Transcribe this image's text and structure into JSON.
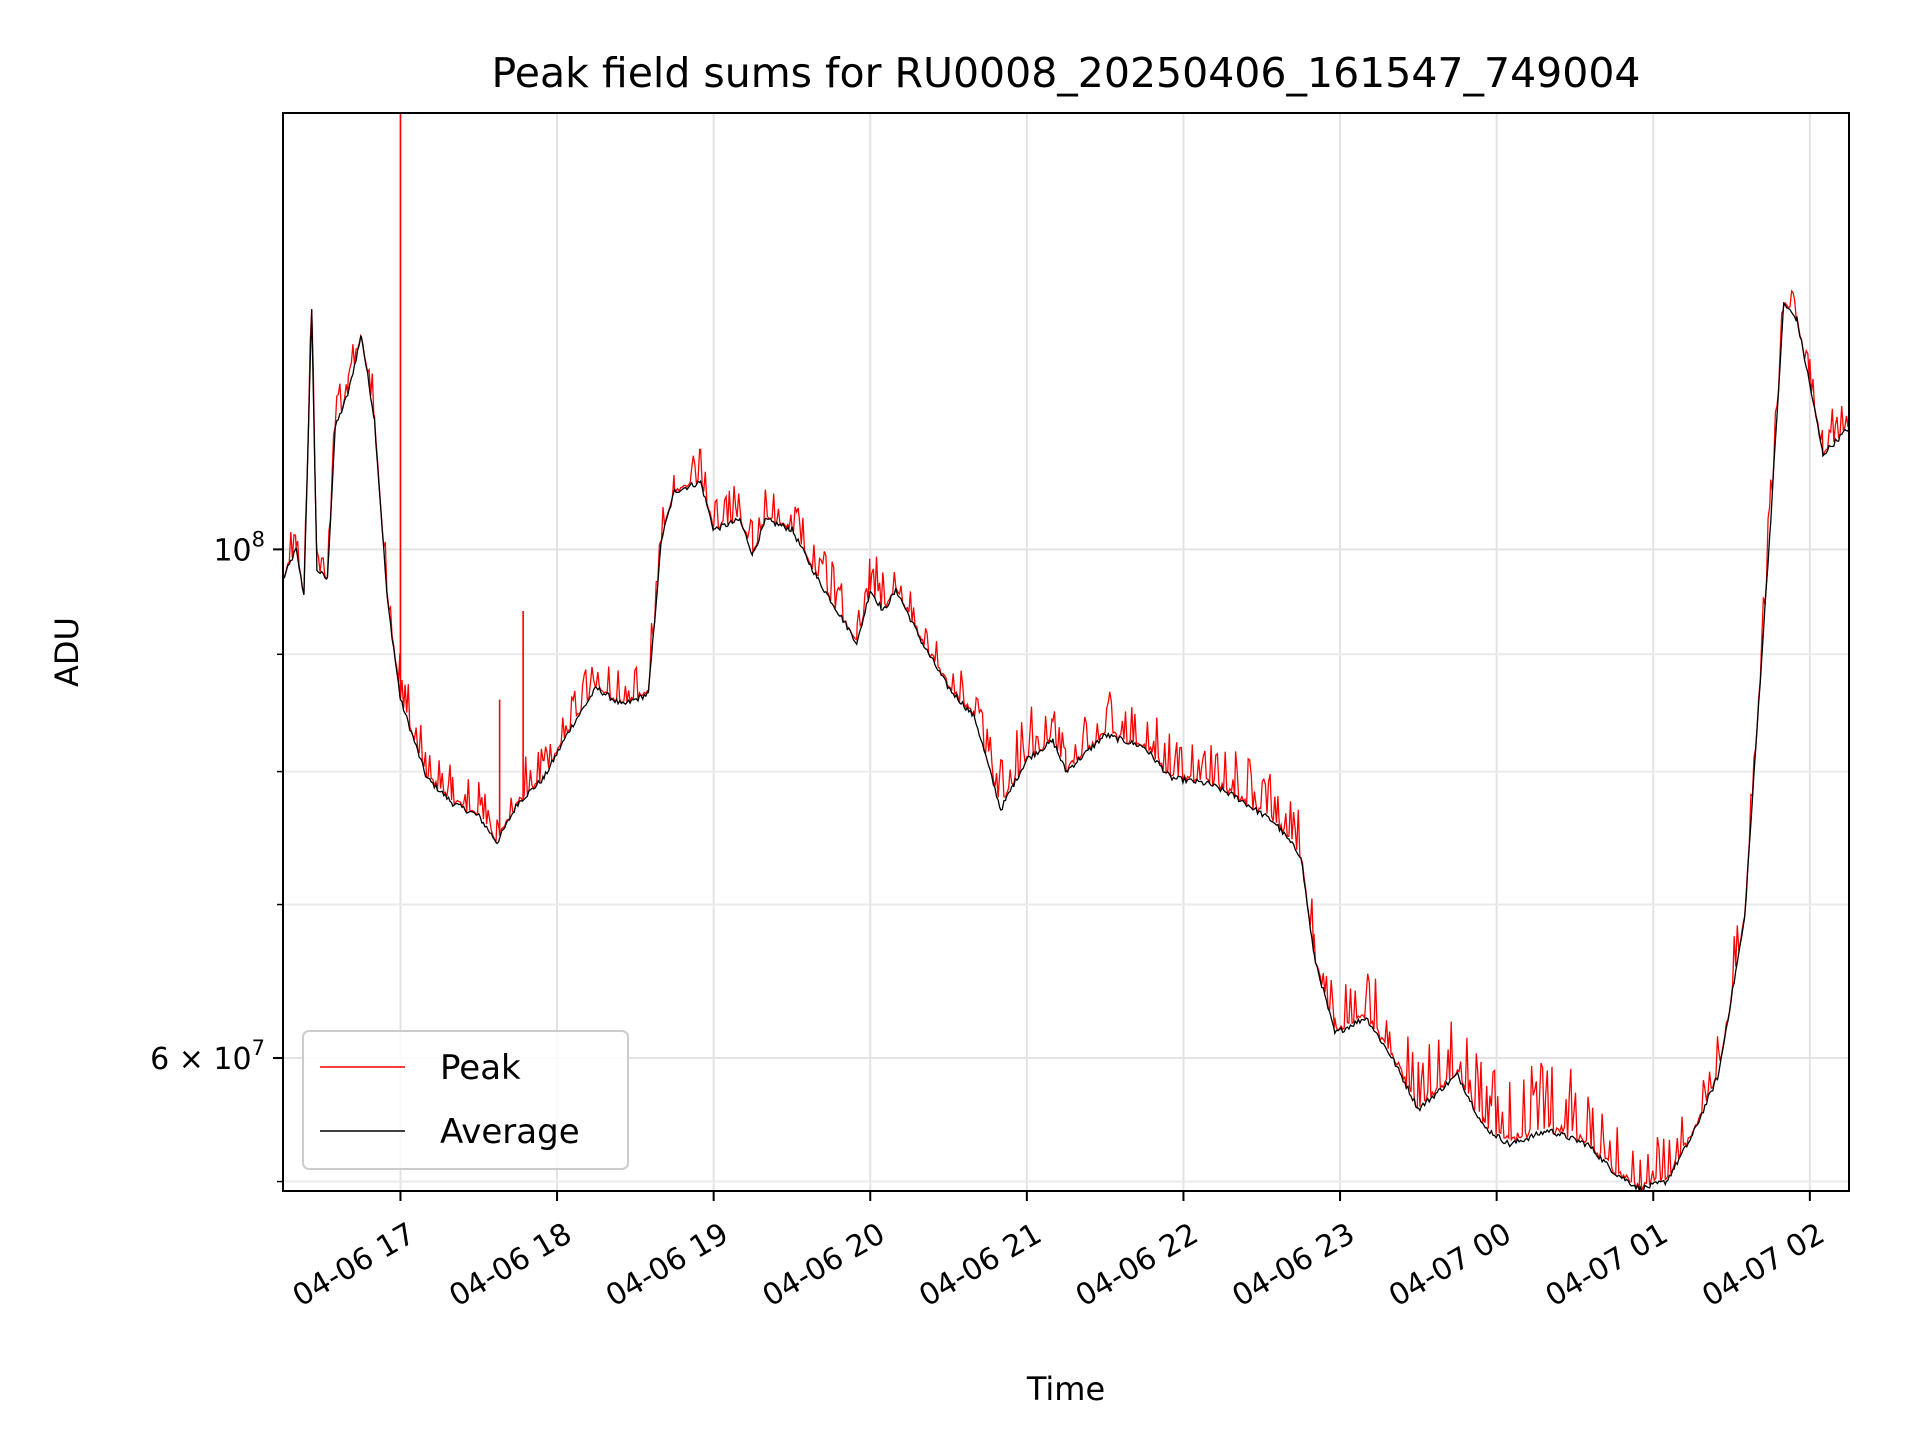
{
  "chart_data": {
    "type": "line",
    "title": "Peak field sums for RU0008_20250406_161547_749004",
    "xlabel": "Time",
    "ylabel": "ADU",
    "y_scale": "log",
    "ylim": [
      52500000,
      155000000
    ],
    "xlim": [
      "2025-04-06 16:15",
      "2025-04-07 02:15"
    ],
    "x_ticks": [
      "04-06 17",
      "04-06 18",
      "04-06 19",
      "04-06 20",
      "04-06 21",
      "04-06 22",
      "04-06 23",
      "04-07 00",
      "04-07 01",
      "04-07 02"
    ],
    "x_tick_times": [
      "2025-04-06 17:00",
      "2025-04-06 18:00",
      "2025-04-06 19:00",
      "2025-04-06 20:00",
      "2025-04-06 21:00",
      "2025-04-06 22:00",
      "2025-04-06 23:00",
      "2025-04-07 00:00",
      "2025-04-07 01:00",
      "2025-04-07 02:00"
    ],
    "y_major_ticks": [
      {
        "value": 100000000,
        "label_base": "10",
        "label_exp": "8"
      },
      {
        "value": 60000000,
        "label_base": "6 × 10",
        "label_exp": "7"
      }
    ],
    "y_minor_gridlines": [
      53000000,
      70000000,
      80000000,
      90000000
    ],
    "grid": true,
    "legend_position": "lower-left",
    "series": [
      {
        "name": "Peak",
        "color": "#ff0000",
        "spikes": [
          {
            "time": "2025-04-06 17:00",
            "value": 155000000
          },
          {
            "time": "2025-04-06 17:47",
            "value": 94000000
          },
          {
            "time": "2025-04-06 17:38",
            "value": 86000000
          }
        ],
        "band_above_average": 0.035,
        "points": [
          [
            "2025-04-06 16:15",
            98000000
          ],
          [
            "2025-04-06 16:20",
            102000000
          ],
          [
            "2025-04-06 16:23",
            96000000
          ],
          [
            "2025-04-06 16:26",
            129000000
          ],
          [
            "2025-04-06 16:28",
            99000000
          ],
          [
            "2025-04-06 16:32",
            98000000
          ],
          [
            "2025-04-06 16:35",
            115000000
          ],
          [
            "2025-04-06 16:40",
            119000000
          ],
          [
            "2025-04-06 16:45",
            125000000
          ],
          [
            "2025-04-06 16:50",
            116000000
          ],
          [
            "2025-04-06 16:55",
            97000000
          ],
          [
            "2025-04-06 17:00",
            88000000
          ],
          [
            "2025-04-06 17:10",
            81000000
          ],
          [
            "2025-04-06 17:20",
            79000000
          ],
          [
            "2025-04-06 17:30",
            78000000
          ],
          [
            "2025-04-06 17:37",
            75500000
          ],
          [
            "2025-04-06 17:45",
            79000000
          ],
          [
            "2025-04-06 17:55",
            81000000
          ],
          [
            "2025-04-06 18:05",
            85000000
          ],
          [
            "2025-04-06 18:15",
            88500000
          ],
          [
            "2025-04-06 18:25",
            87000000
          ],
          [
            "2025-04-06 18:35",
            88000000
          ],
          [
            "2025-04-06 18:40",
            103000000
          ],
          [
            "2025-04-06 18:45",
            108000000
          ],
          [
            "2025-04-06 18:55",
            109000000
          ],
          [
            "2025-04-06 19:00",
            104000000
          ],
          [
            "2025-04-06 19:10",
            105000000
          ],
          [
            "2025-04-06 19:15",
            101000000
          ],
          [
            "2025-04-06 19:20",
            105000000
          ],
          [
            "2025-04-06 19:30",
            104000000
          ],
          [
            "2025-04-06 19:40",
            99000000
          ],
          [
            "2025-04-06 19:50",
            95000000
          ],
          [
            "2025-04-06 19:55",
            93000000
          ],
          [
            "2025-04-06 20:00",
            98000000
          ],
          [
            "2025-04-06 20:05",
            96000000
          ],
          [
            "2025-04-06 20:10",
            98000000
          ],
          [
            "2025-04-06 20:20",
            93000000
          ],
          [
            "2025-04-06 20:30",
            89000000
          ],
          [
            "2025-04-06 20:40",
            86000000
          ],
          [
            "2025-04-06 20:50",
            79000000
          ],
          [
            "2025-04-06 20:55",
            81000000
          ],
          [
            "2025-04-06 21:00",
            83000000
          ],
          [
            "2025-04-06 21:10",
            84500000
          ],
          [
            "2025-04-06 21:15",
            82000000
          ],
          [
            "2025-04-06 21:30",
            85000000
          ],
          [
            "2025-04-06 21:45",
            84000000
          ],
          [
            "2025-04-06 21:55",
            81500000
          ],
          [
            "2025-04-06 22:10",
            81000000
          ],
          [
            "2025-04-06 22:20",
            80000000
          ],
          [
            "2025-04-06 22:35",
            78000000
          ],
          [
            "2025-04-06 22:45",
            75000000
          ],
          [
            "2025-04-06 22:50",
            68000000
          ],
          [
            "2025-04-06 22:58",
            63000000
          ],
          [
            "2025-04-06 23:10",
            64500000
          ],
          [
            "2025-04-06 23:20",
            62000000
          ],
          [
            "2025-04-06 23:30",
            59000000
          ],
          [
            "2025-04-06 23:45",
            61000000
          ],
          [
            "2025-04-06 23:55",
            58000000
          ],
          [
            "2025-04-07 00:05",
            57000000
          ],
          [
            "2025-04-07 00:20",
            58000000
          ],
          [
            "2025-04-07 00:35",
            57000000
          ],
          [
            "2025-04-07 00:45",
            55000000
          ],
          [
            "2025-04-07 00:55",
            53500000
          ],
          [
            "2025-04-07 01:05",
            54500000
          ],
          [
            "2025-04-07 01:15",
            57000000
          ],
          [
            "2025-04-07 01:25",
            60500000
          ],
          [
            "2025-04-07 01:35",
            71000000
          ],
          [
            "2025-04-07 01:45",
            105000000
          ],
          [
            "2025-04-07 01:50",
            130000000
          ],
          [
            "2025-04-07 01:55",
            128000000
          ],
          [
            "2025-04-07 02:00",
            120000000
          ],
          [
            "2025-04-07 02:05",
            112000000
          ],
          [
            "2025-04-07 02:15",
            115000000
          ]
        ]
      },
      {
        "name": "Average",
        "color": "#000000",
        "points": [
          [
            "2025-04-06 16:15",
            97000000
          ],
          [
            "2025-04-06 16:20",
            100000000
          ],
          [
            "2025-04-06 16:23",
            95500000
          ],
          [
            "2025-04-06 16:26",
            127000000
          ],
          [
            "2025-04-06 16:28",
            98000000
          ],
          [
            "2025-04-06 16:32",
            97000000
          ],
          [
            "2025-04-06 16:35",
            113000000
          ],
          [
            "2025-04-06 16:40",
            117000000
          ],
          [
            "2025-04-06 16:45",
            124000000
          ],
          [
            "2025-04-06 16:50",
            114000000
          ],
          [
            "2025-04-06 16:55",
            95000000
          ],
          [
            "2025-04-06 17:00",
            86000000
          ],
          [
            "2025-04-06 17:10",
            79500000
          ],
          [
            "2025-04-06 17:20",
            77500000
          ],
          [
            "2025-04-06 17:30",
            76500000
          ],
          [
            "2025-04-06 17:37",
            74500000
          ],
          [
            "2025-04-06 17:45",
            77500000
          ],
          [
            "2025-04-06 17:55",
            79500000
          ],
          [
            "2025-04-06 18:05",
            83500000
          ],
          [
            "2025-04-06 18:15",
            87000000
          ],
          [
            "2025-04-06 18:25",
            85500000
          ],
          [
            "2025-04-06 18:35",
            86500000
          ],
          [
            "2025-04-06 18:40",
            101000000
          ],
          [
            "2025-04-06 18:45",
            106000000
          ],
          [
            "2025-04-06 18:55",
            107000000
          ],
          [
            "2025-04-06 19:00",
            102000000
          ],
          [
            "2025-04-06 19:10",
            103000000
          ],
          [
            "2025-04-06 19:15",
            99500000
          ],
          [
            "2025-04-06 19:20",
            103000000
          ],
          [
            "2025-04-06 19:30",
            102000000
          ],
          [
            "2025-04-06 19:40",
            97000000
          ],
          [
            "2025-04-06 19:50",
            93000000
          ],
          [
            "2025-04-06 19:55",
            91000000
          ],
          [
            "2025-04-06 20:00",
            96000000
          ],
          [
            "2025-04-06 20:05",
            94000000
          ],
          [
            "2025-04-06 20:10",
            96000000
          ],
          [
            "2025-04-06 20:20",
            91000000
          ],
          [
            "2025-04-06 20:30",
            87000000
          ],
          [
            "2025-04-06 20:40",
            84500000
          ],
          [
            "2025-04-06 20:50",
            77000000
          ],
          [
            "2025-04-06 20:55",
            79000000
          ],
          [
            "2025-04-06 21:00",
            81000000
          ],
          [
            "2025-04-06 21:10",
            82500000
          ],
          [
            "2025-04-06 21:15",
            80000000
          ],
          [
            "2025-04-06 21:30",
            83000000
          ],
          [
            "2025-04-06 21:45",
            82000000
          ],
          [
            "2025-04-06 21:55",
            79500000
          ],
          [
            "2025-04-06 22:10",
            79000000
          ],
          [
            "2025-04-06 22:20",
            78000000
          ],
          [
            "2025-04-06 22:35",
            76000000
          ],
          [
            "2025-04-06 22:45",
            73500000
          ],
          [
            "2025-04-06 22:50",
            66500000
          ],
          [
            "2025-04-06 22:58",
            61500000
          ],
          [
            "2025-04-06 23:10",
            62500000
          ],
          [
            "2025-04-06 23:20",
            60000000
          ],
          [
            "2025-04-06 23:30",
            57000000
          ],
          [
            "2025-04-06 23:45",
            59000000
          ],
          [
            "2025-04-06 23:55",
            56000000
          ],
          [
            "2025-04-07 00:05",
            55000000
          ],
          [
            "2025-04-07 00:20",
            55800000
          ],
          [
            "2025-04-07 00:35",
            55000000
          ],
          [
            "2025-04-07 00:45",
            53500000
          ],
          [
            "2025-04-07 00:55",
            52600000
          ],
          [
            "2025-04-07 01:05",
            53000000
          ],
          [
            "2025-04-07 01:15",
            55500000
          ],
          [
            "2025-04-07 01:25",
            59000000
          ],
          [
            "2025-04-07 01:35",
            69000000
          ],
          [
            "2025-04-07 01:45",
            103000000
          ],
          [
            "2025-04-07 01:50",
            128000000
          ],
          [
            "2025-04-07 01:55",
            126000000
          ],
          [
            "2025-04-07 02:00",
            118000000
          ],
          [
            "2025-04-07 02:05",
            110000000
          ],
          [
            "2025-04-07 02:15",
            113000000
          ]
        ]
      }
    ]
  }
}
